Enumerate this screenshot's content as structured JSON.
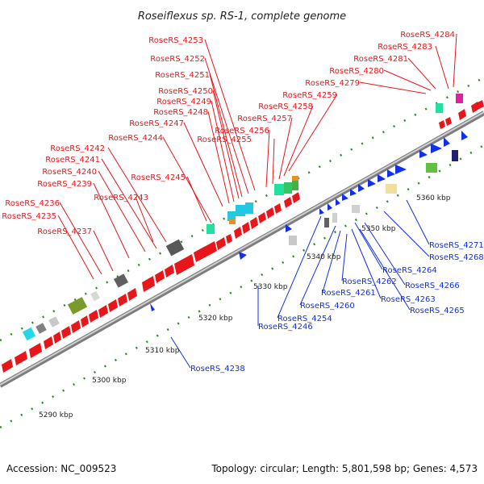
{
  "title": "Roseiflexus sp. RS-1, complete genome",
  "footer": {
    "accession": "Accession: NC_009523",
    "summary": "Topology: circular; Length: 5,801,598 bp; Genes: 4,573"
  },
  "scale": {
    "ticks": [
      "5290 kbp",
      "5300 kbp",
      "5310 kbp",
      "5320 kbp",
      "5330 kbp",
      "5340 kbp",
      "5350 kbp",
      "5360 kbp"
    ]
  },
  "forward_labels": [
    "RoseRS_4253",
    "RoseRS_4252",
    "RoseRS_4251",
    "RoseRS_4250",
    "RoseRS_4249",
    "RoseRS_4248",
    "RoseRS_4247",
    "RoseRS_4244",
    "RoseRS_4242",
    "RoseRS_4241",
    "RoseRS_4240",
    "RoseRS_4239",
    "RoseRS_4245",
    "RoseRS_4243",
    "RoseRS_4236",
    "RoseRS_4235",
    "RoseRS_4237",
    "RoseRS_4256",
    "RoseRS_4255",
    "RoseRS_4257",
    "RoseRS_4258",
    "RoseRS_4259",
    "RoseRS_4279",
    "RoseRS_4280",
    "RoseRS_4281",
    "RoseRS_4283",
    "RoseRS_4284"
  ],
  "reverse_labels": [
    "RoseRS_4238",
    "RoseRS_4246",
    "RoseRS_4254",
    "RoseRS_4260",
    "RoseRS_4261",
    "RoseRS_4262",
    "RoseRS_4263",
    "RoseRS_4264",
    "RoseRS_4265",
    "RoseRS_4266",
    "RoseRS_4268",
    "RoseRS_4271"
  ],
  "colors": {
    "forward": "#e8161b",
    "reverse": "#1230e8",
    "backbone": "#a9a9a9",
    "tick": "#2a8a2a"
  }
}
